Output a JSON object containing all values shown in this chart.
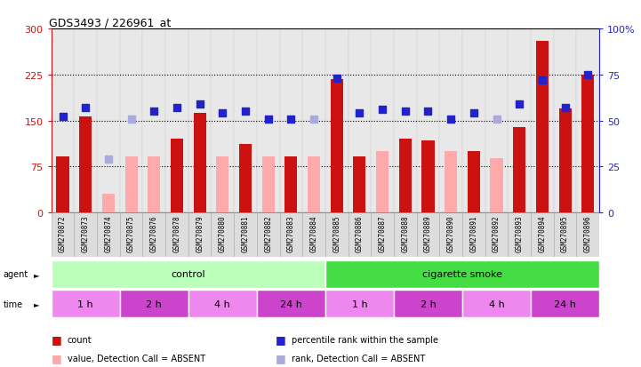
{
  "title": "GDS3493 / 226961_at",
  "samples": [
    "GSM270872",
    "GSM270873",
    "GSM270874",
    "GSM270875",
    "GSM270876",
    "GSM270878",
    "GSM270879",
    "GSM270880",
    "GSM270881",
    "GSM270882",
    "GSM270883",
    "GSM270884",
    "GSM270885",
    "GSM270886",
    "GSM270887",
    "GSM270888",
    "GSM270889",
    "GSM270890",
    "GSM270891",
    "GSM270892",
    "GSM270893",
    "GSM270894",
    "GSM270895",
    "GSM270896"
  ],
  "count": [
    92,
    157,
    null,
    null,
    null,
    120,
    162,
    null,
    112,
    null,
    92,
    null,
    218,
    92,
    null,
    120,
    118,
    null,
    100,
    null,
    140,
    280,
    170,
    225
  ],
  "count_absent": [
    null,
    null,
    30,
    92,
    92,
    null,
    null,
    92,
    null,
    92,
    null,
    92,
    null,
    null,
    100,
    null,
    null,
    100,
    null,
    88,
    null,
    null,
    null,
    null
  ],
  "rank": [
    52,
    57,
    null,
    null,
    55,
    57,
    59,
    54,
    55,
    51,
    51,
    null,
    73,
    54,
    56,
    55,
    55,
    51,
    54,
    null,
    59,
    72,
    57,
    75
  ],
  "rank_absent": [
    null,
    null,
    29,
    51,
    null,
    null,
    null,
    null,
    null,
    null,
    null,
    51,
    null,
    null,
    null,
    null,
    null,
    null,
    null,
    51,
    null,
    null,
    null,
    null
  ],
  "ylim_left": [
    0,
    300
  ],
  "ylim_right": [
    0,
    100
  ],
  "yticks_left": [
    0,
    75,
    150,
    225,
    300
  ],
  "yticks_right": [
    0,
    25,
    50,
    75,
    100
  ],
  "hlines": [
    75,
    150,
    225
  ],
  "bar_color_count": "#cc1111",
  "bar_color_absent": "#ffaaaa",
  "dot_color_rank": "#2222cc",
  "dot_color_rank_absent": "#aaaadd",
  "agent_groups": [
    {
      "label": "control",
      "start": 0,
      "end": 12,
      "color": "#bbffbb"
    },
    {
      "label": "cigarette smoke",
      "start": 12,
      "end": 24,
      "color": "#44dd44"
    }
  ],
  "time_groups": [
    {
      "label": "1 h",
      "start": 0,
      "end": 3,
      "color": "#ee88ee"
    },
    {
      "label": "2 h",
      "start": 3,
      "end": 6,
      "color": "#cc44cc"
    },
    {
      "label": "4 h",
      "start": 6,
      "end": 9,
      "color": "#ee88ee"
    },
    {
      "label": "24 h",
      "start": 9,
      "end": 12,
      "color": "#cc44cc"
    },
    {
      "label": "1 h",
      "start": 12,
      "end": 15,
      "color": "#ee88ee"
    },
    {
      "label": "2 h",
      "start": 15,
      "end": 18,
      "color": "#cc44cc"
    },
    {
      "label": "4 h",
      "start": 18,
      "end": 21,
      "color": "#ee88ee"
    },
    {
      "label": "24 h",
      "start": 21,
      "end": 24,
      "color": "#cc44cc"
    }
  ],
  "legend_items": [
    {
      "label": "count",
      "color": "#cc1111"
    },
    {
      "label": "percentile rank within the sample",
      "color": "#2222cc"
    },
    {
      "label": "value, Detection Call = ABSENT",
      "color": "#ffaaaa"
    },
    {
      "label": "rank, Detection Call = ABSENT",
      "color": "#aaaadd"
    }
  ]
}
